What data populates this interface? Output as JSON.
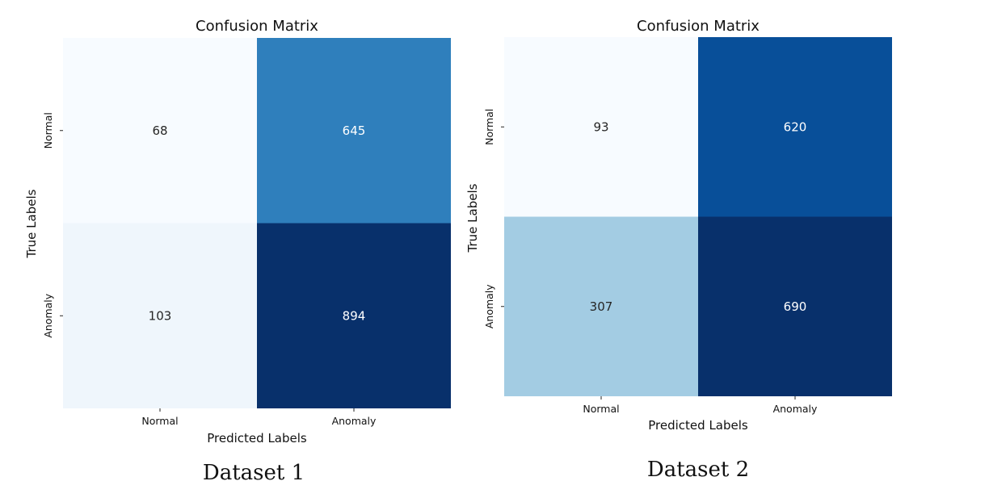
{
  "chart_data": [
    {
      "type": "heatmap",
      "title": "Confusion Matrix",
      "xlabel": "Predicted Labels",
      "ylabel": "True Labels",
      "x_categories": [
        "Normal",
        "Anomaly"
      ],
      "y_categories": [
        "Normal",
        "Anomaly"
      ],
      "values": [
        [
          68,
          645
        ],
        [
          103,
          894
        ]
      ],
      "colormap": "Blues",
      "colorbar": false,
      "caption": "Dataset 1"
    },
    {
      "type": "heatmap",
      "title": "Confusion Matrix",
      "xlabel": "Predicted Labels",
      "ylabel": "True Labels",
      "x_categories": [
        "Normal",
        "Anomaly"
      ],
      "y_categories": [
        "Normal",
        "Anomaly"
      ],
      "values": [
        [
          93,
          620
        ],
        [
          307,
          690
        ]
      ],
      "colormap": "Blues",
      "colorbar": false,
      "caption": "Dataset 2"
    }
  ],
  "colors": {
    "blues_low": "#f7fbff",
    "blues_high": "#08306b",
    "text_dark": "#262626",
    "text_light": "#ffffff"
  }
}
